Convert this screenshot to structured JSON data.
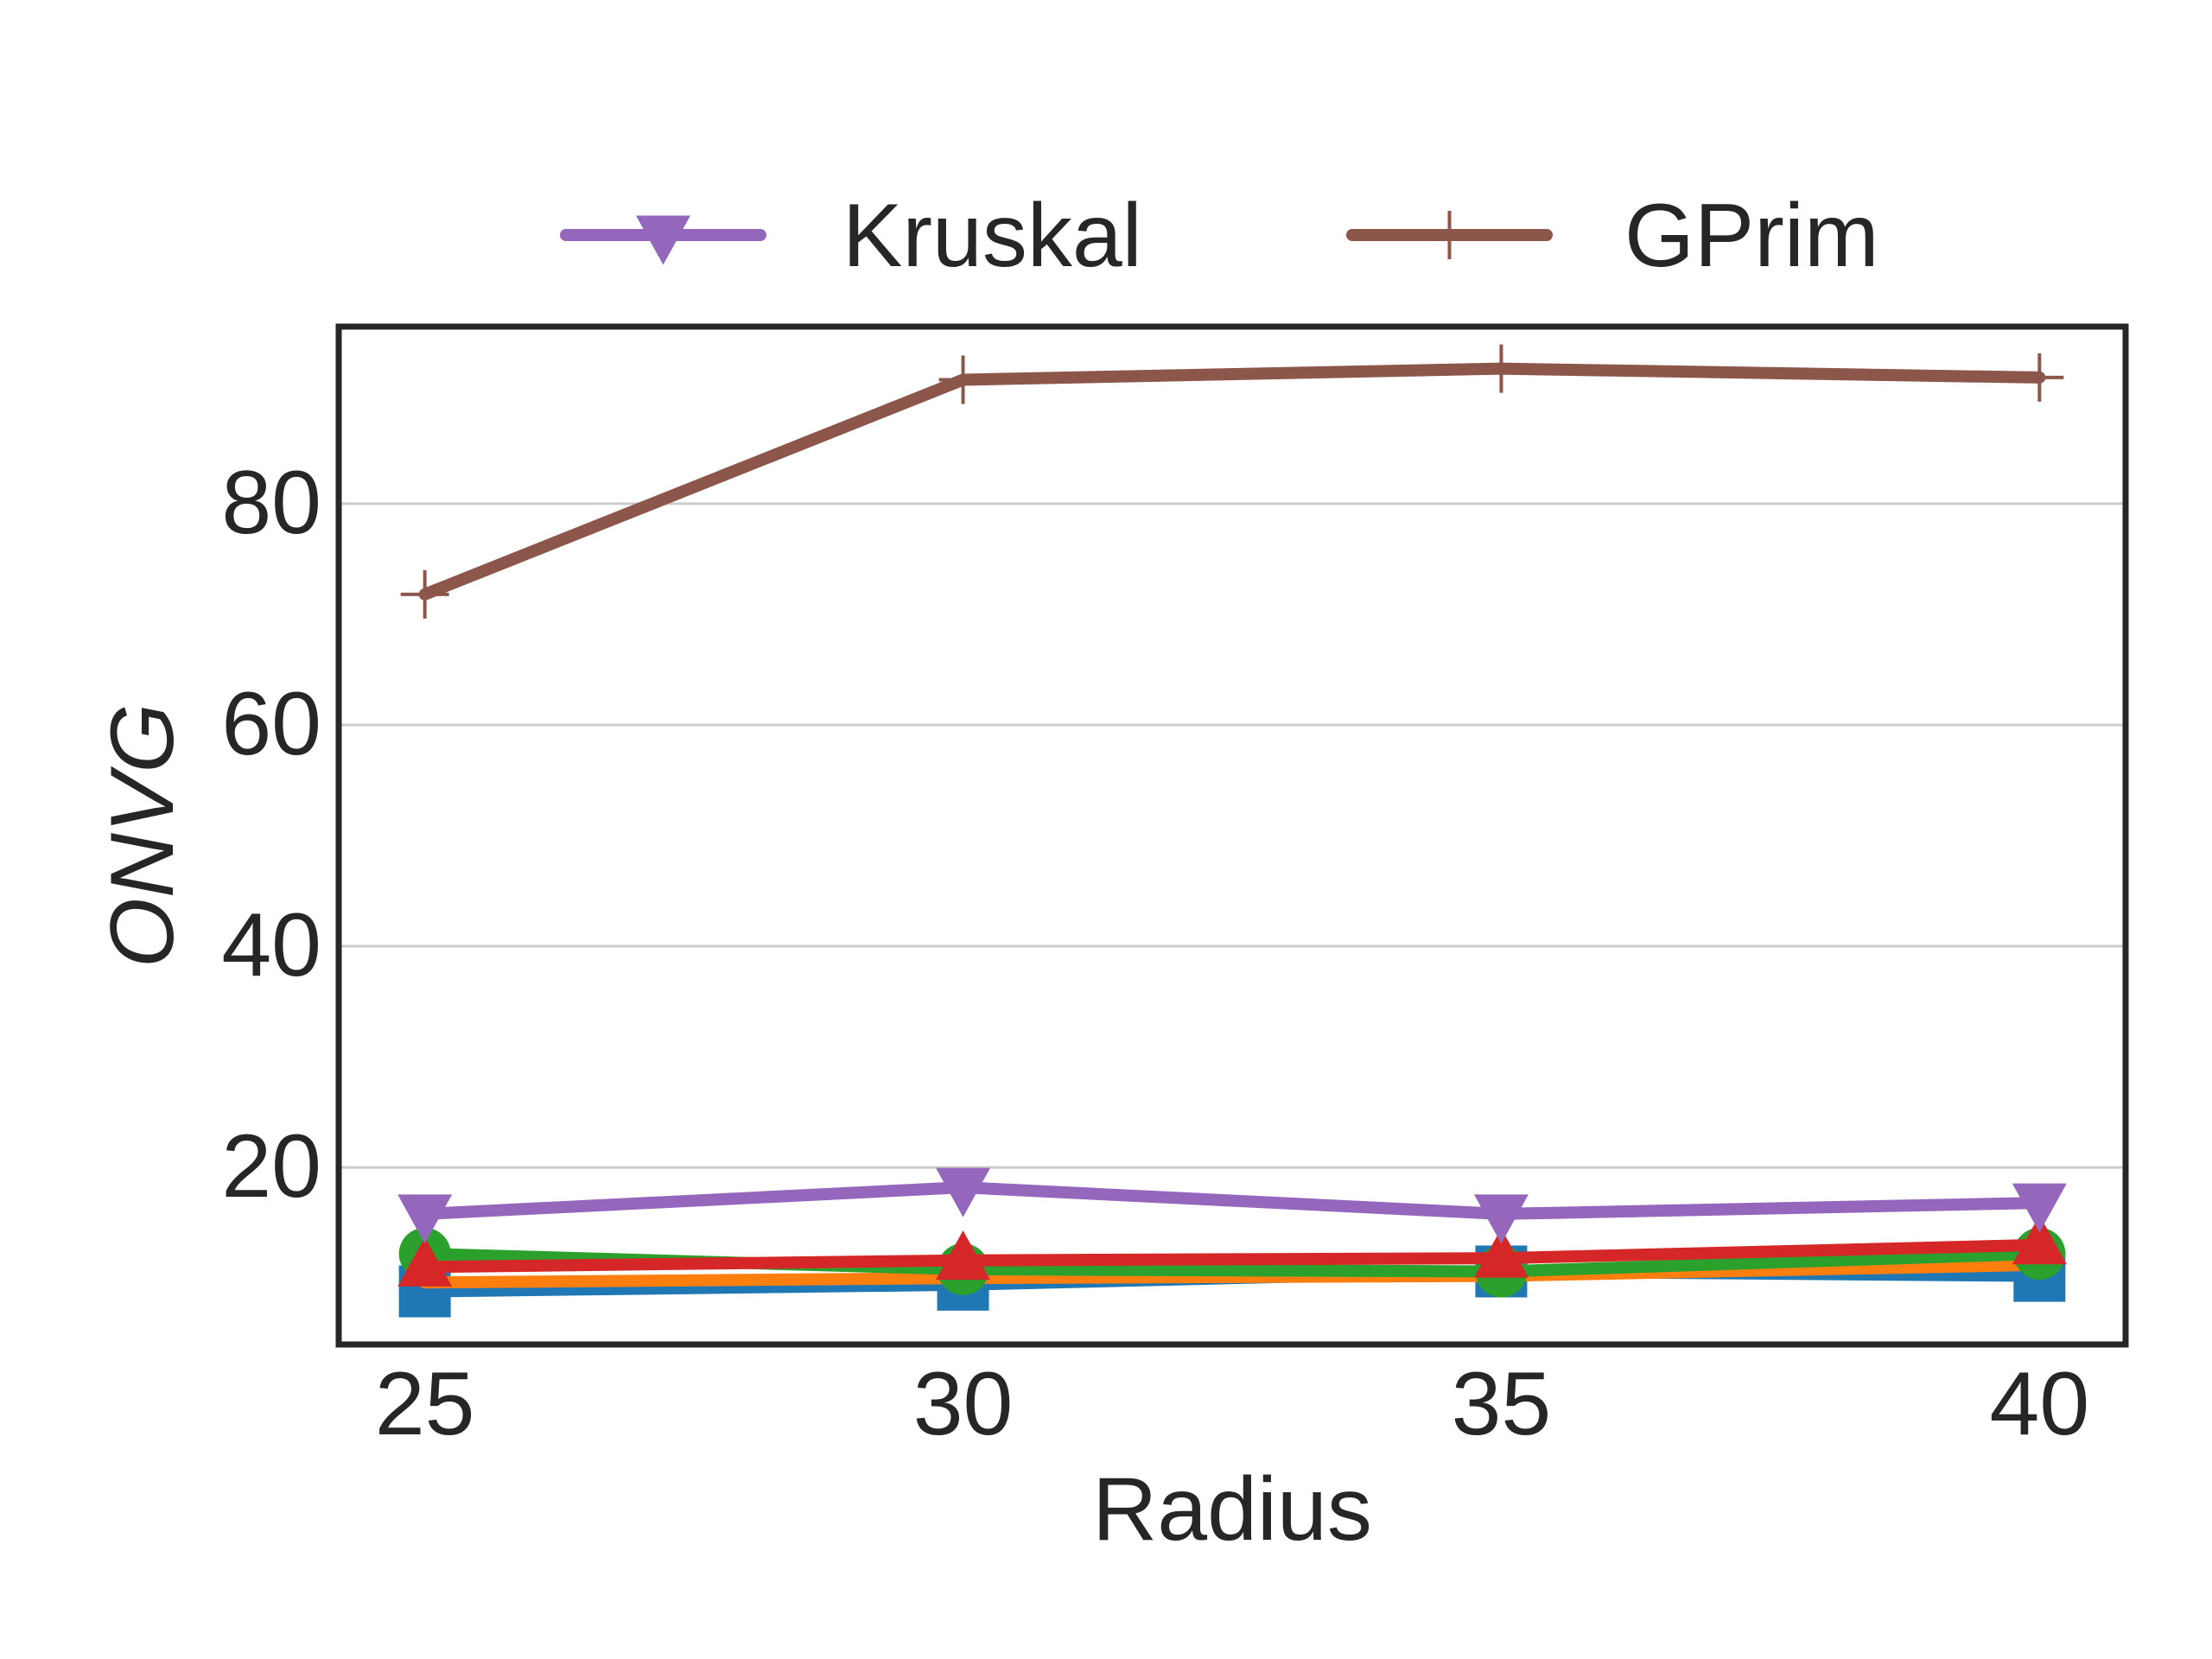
{
  "chart_data": {
    "type": "line",
    "xlabel": "Radius",
    "ylabel": "ONVG",
    "x": [
      25,
      30,
      35,
      40
    ],
    "xlim": [
      24.2,
      40.8
    ],
    "ylim": [
      4,
      96
    ],
    "yticks": [
      20,
      40,
      60,
      80
    ],
    "grid": "horizontal",
    "legend_position": "top-center",
    "series": [
      {
        "name": "",
        "color": "#1f77b4",
        "marker": "square",
        "values": [
          8.8,
          9.4,
          10.6,
          10.2
        ]
      },
      {
        "name": "",
        "color": "#ff7f0e",
        "marker": "none",
        "values": [
          9.6,
          10.0,
          10.2,
          11.2
        ]
      },
      {
        "name": "",
        "color": "#2ca02c",
        "marker": "circle",
        "values": [
          12.2,
          10.8,
          10.6,
          12.2
        ]
      },
      {
        "name": "",
        "color": "#d62728",
        "marker": "triangle-up",
        "values": [
          11.0,
          11.6,
          11.8,
          13.0
        ]
      },
      {
        "name": "Kruskal",
        "color": "#9467bd",
        "marker": "triangle-down",
        "values": [
          15.8,
          18.2,
          15.8,
          16.8
        ]
      },
      {
        "name": "GPrim",
        "color": "#8c564b",
        "marker": "plus",
        "values": [
          71.8,
          91.2,
          92.2,
          91.4
        ]
      }
    ]
  }
}
